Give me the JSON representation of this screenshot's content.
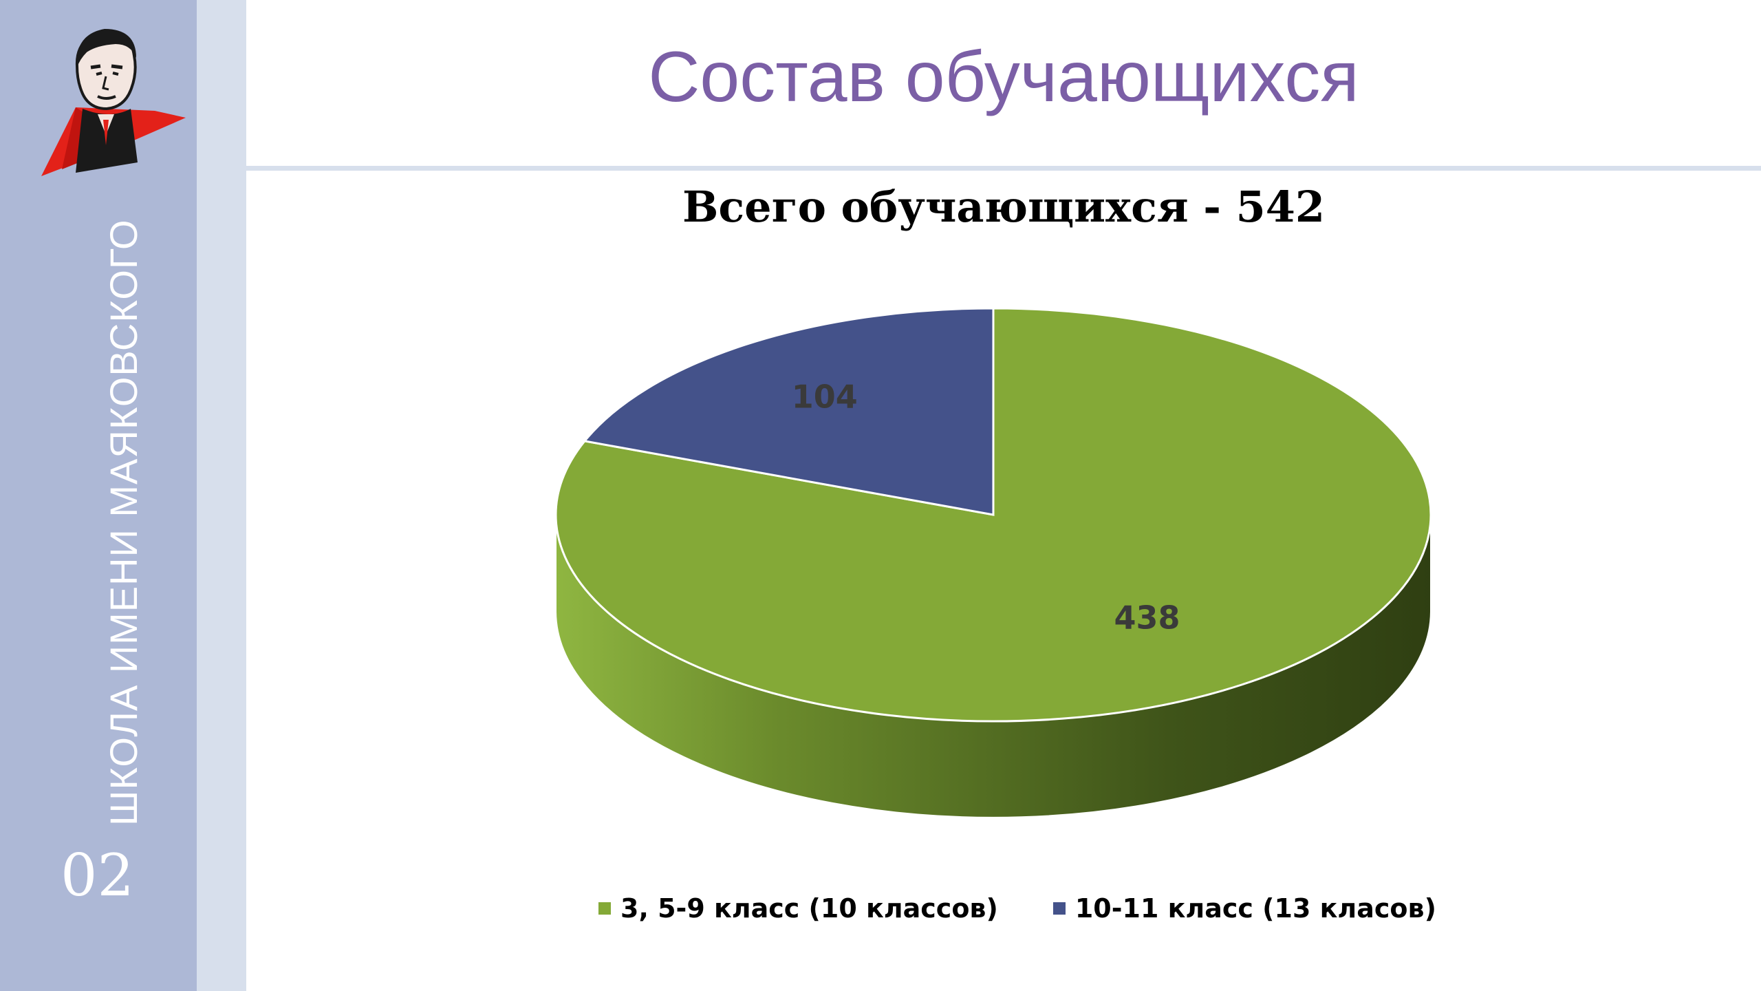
{
  "sidebar": {
    "school_name": "ШКОЛА ИМЕНИ МАЯКОВСКОГО",
    "slide_number": "02",
    "colors": {
      "panel": "#adb8d6",
      "strip": "#d7dfec"
    },
    "logo_icon": "mayakovsky-portrait-logo"
  },
  "slide": {
    "title": "Состав обучающихся",
    "title_color": "#7b5fa6"
  },
  "chart_data": {
    "type": "pie",
    "style": "3d",
    "title": "Всего обучающихся - 542",
    "categories": [
      "3, 5-9 класс (10 классов)",
      "10-11 класс (13 класов)"
    ],
    "values": [
      438,
      104
    ],
    "data_labels": [
      "438",
      "104"
    ],
    "colors": [
      "#84a937",
      "#44528a"
    ],
    "legend_position": "bottom"
  }
}
